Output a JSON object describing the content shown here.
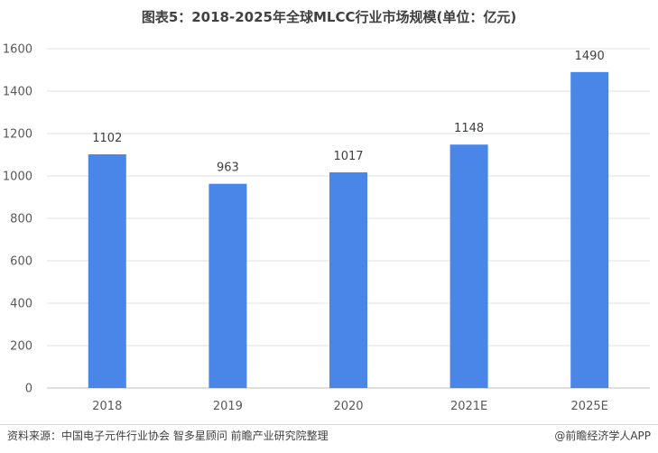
{
  "chart_data": {
    "type": "bar",
    "title": "图表5：2018-2025年全球MLCC行业市场规模(单位：亿元)",
    "categories": [
      "2018",
      "2019",
      "2020",
      "2021E",
      "2025E"
    ],
    "values": [
      1102,
      963,
      1017,
      1148,
      1490
    ],
    "ylim": [
      0,
      1600
    ],
    "yticks": [
      "0",
      "200",
      "400",
      "600",
      "800",
      "1000",
      "1200",
      "1400",
      "1600"
    ],
    "grid": true,
    "legend": "none",
    "bar_color": "#4a86e8"
  },
  "footer": {
    "source": "资料来源：中国电子元件行业协会 智多星顾问 前瞻产业研究院整理",
    "brand": "@前瞻经济学人APP"
  }
}
